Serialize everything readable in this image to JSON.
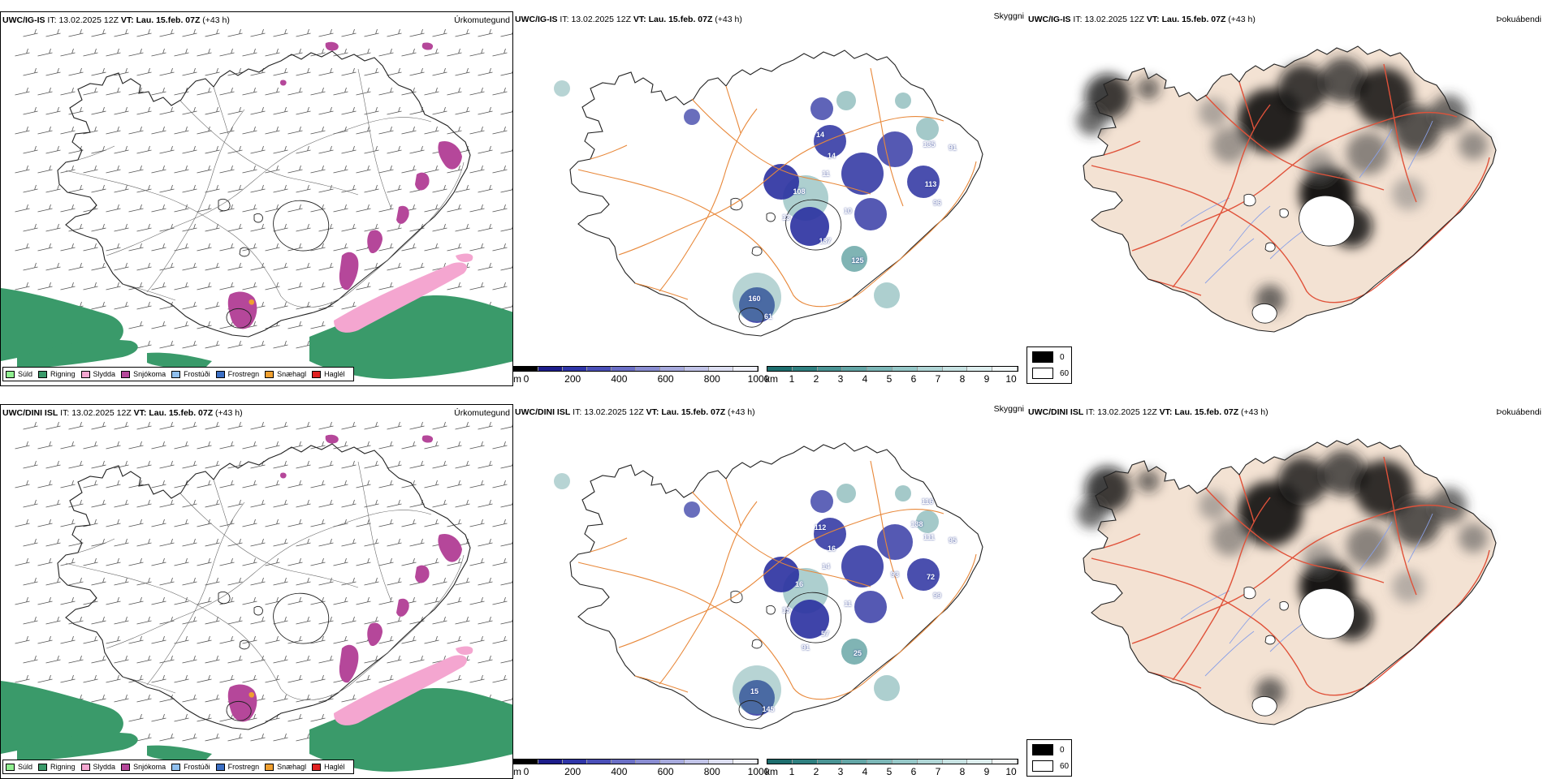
{
  "rows": [
    {
      "model": "UWC/IG-IS",
      "it_label": "IT:",
      "it_value": "13.02.2025 12Z",
      "vt_label": "VT:",
      "vt_value": "Lau. 15.feb. 07Z",
      "lead": "(+43 h)",
      "vis_labels": [
        "14",
        "14",
        "11",
        "108",
        "13",
        "10",
        "137",
        "125",
        "91",
        "113",
        "96",
        "135",
        "160",
        "61"
      ]
    },
    {
      "model": "UWC/DINI ISL",
      "it_label": "IT:",
      "it_value": "13.02.2025 12Z",
      "vt_label": "VT:",
      "vt_value": "Lau. 15.feb. 07Z",
      "lead": "(+43 h)",
      "vis_labels": [
        "112",
        "16",
        "14",
        "16",
        "15",
        "11",
        "57",
        "25",
        "95",
        "72",
        "99",
        "111",
        "15",
        "145",
        "116",
        "138",
        "93",
        "91"
      ]
    }
  ],
  "panels": {
    "precip_type": {
      "title": "Úrkomutegund",
      "legend": [
        {
          "label": "Súld",
          "color": "#90ee90"
        },
        {
          "label": "Rigning",
          "color": "#3a9a6a"
        },
        {
          "label": "Slydda",
          "color": "#f4a6d0"
        },
        {
          "label": "Snjókoma",
          "color": "#b5479a"
        },
        {
          "label": "Frostúði",
          "color": "#8fbfee"
        },
        {
          "label": "Frostregn",
          "color": "#3b6fc4"
        },
        {
          "label": "Snæhagl",
          "color": "#f0a030"
        },
        {
          "label": "Haglél",
          "color": "#e02020"
        }
      ]
    },
    "visibility": {
      "title": "Skyggni",
      "cloud_base_unit": "m",
      "cloud_base_ticks": [
        "0",
        "200",
        "400",
        "600",
        "800",
        "1000"
      ],
      "cloud_base_colors": [
        "#000000",
        "#1c1c8a",
        "#2f35a8",
        "#4a4fb8",
        "#6b6fc6",
        "#8a8dd2",
        "#a7aadd",
        "#c2c4e8",
        "#dddff2",
        "#f0f1fa"
      ],
      "visibility_unit": "km",
      "visibility_ticks": [
        "1",
        "2",
        "3",
        "4",
        "5",
        "6",
        "7",
        "8",
        "9",
        "10"
      ],
      "visibility_colors": [
        "#1d6e6e",
        "#2f8080",
        "#4a9494",
        "#63a6a6",
        "#7cb7b7",
        "#96c8c8",
        "#b0d6d6",
        "#c8e3e3",
        "#ddeeee",
        "#f2f8f8"
      ]
    },
    "fog": {
      "title": "Þokuábendi",
      "legend": [
        {
          "label": "0",
          "color": "#000000"
        },
        {
          "label": "60",
          "color": "#ffffff"
        }
      ]
    }
  },
  "colors": {
    "rain": "#3a9a6a",
    "snow": "#b5479a",
    "sleet": "#f4a6d0",
    "road": "#e8883a",
    "land": "#f3e2d3",
    "fog_road": "#e0523a",
    "river": "#8aa0e6",
    "vis_dark": "#2a30a0",
    "vis_teal": "#4a9494"
  }
}
